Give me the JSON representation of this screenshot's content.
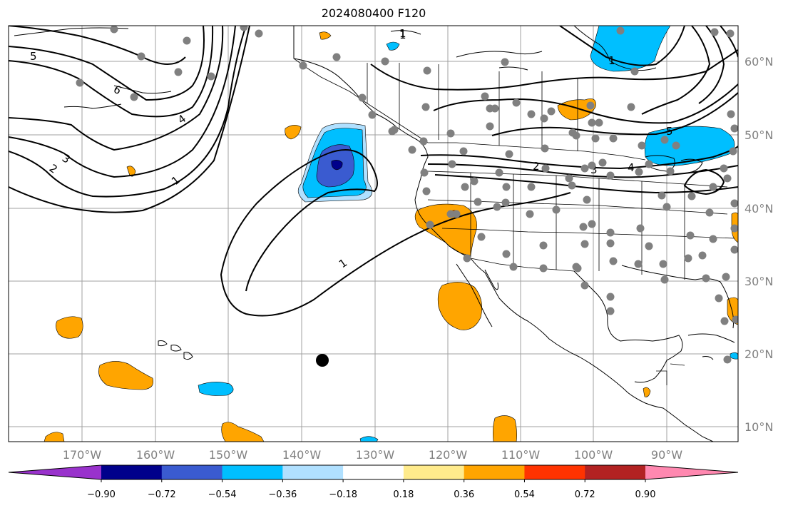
{
  "title": "2024080400 F120",
  "map": {
    "lon_ticks": [
      "170°W",
      "160°W",
      "150°W",
      "140°W",
      "130°W",
      "120°W",
      "110°W",
      "100°W",
      "90°W"
    ],
    "lat_ticks": [
      "60°N",
      "50°N",
      "40°N",
      "30°N",
      "20°N",
      "10°N"
    ],
    "contour_labels": [
      "5",
      "6",
      "4",
      "3",
      "2",
      "1",
      "1",
      "1",
      "1",
      "5",
      "2",
      "3",
      "4",
      "1"
    ],
    "station_color": "#808080"
  },
  "colorbar": {
    "ticks": [
      "−0.90",
      "−0.72",
      "−0.54",
      "−0.36",
      "−0.18",
      "0.18",
      "0.36",
      "0.54",
      "0.72",
      "0.90"
    ],
    "colors": [
      "#9932cc",
      "#00008b",
      "#3a5bd0",
      "#00bfff",
      "#b0e0ff",
      "#ffffff",
      "#ffeb8c",
      "#ffa500",
      "#ff3300",
      "#b22222",
      "#ff88b0"
    ]
  }
}
